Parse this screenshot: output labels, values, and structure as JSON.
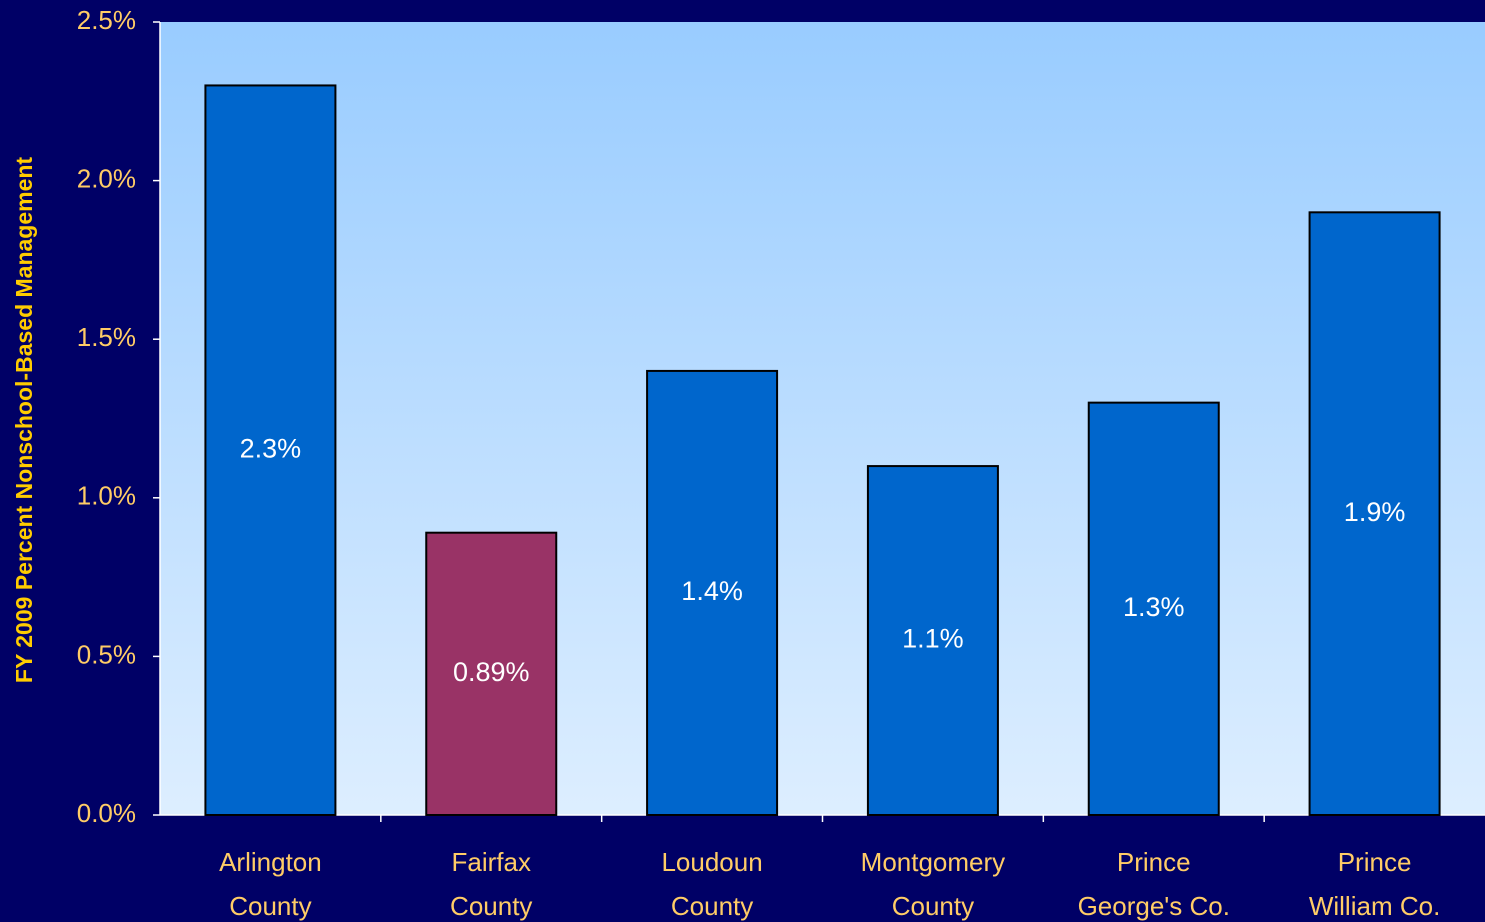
{
  "chart_data": {
    "type": "bar",
    "y_label": "FY 2009 Percent Nonschool-Based Management",
    "categories": [
      "Arlington\nCounty",
      "Fairfax\nCounty",
      "Loudoun\nCounty",
      "Montgomery\nCounty",
      "Prince\nGeorge's Co.",
      "Prince\nWilliam Co."
    ],
    "values": [
      2.3,
      0.89,
      1.4,
      1.1,
      1.3,
      1.9
    ],
    "value_labels": [
      "2.3%",
      "0.89%",
      "1.4%",
      "1.1%",
      "1.3%",
      "1.9%"
    ],
    "colors": [
      "#0066cc",
      "#993366",
      "#0066cc",
      "#0066cc",
      "#0066cc",
      "#0066cc"
    ],
    "ylim": [
      0,
      2.5
    ],
    "yticks": [
      {
        "value": 0,
        "label": "0.0%"
      },
      {
        "value": 0.5,
        "label": "0.5%"
      },
      {
        "value": 1,
        "label": "1.0%"
      },
      {
        "value": 1.5,
        "label": "1.5%"
      },
      {
        "value": 2,
        "label": "2.0%"
      },
      {
        "value": 2.5,
        "label": "2.5%"
      }
    ]
  }
}
